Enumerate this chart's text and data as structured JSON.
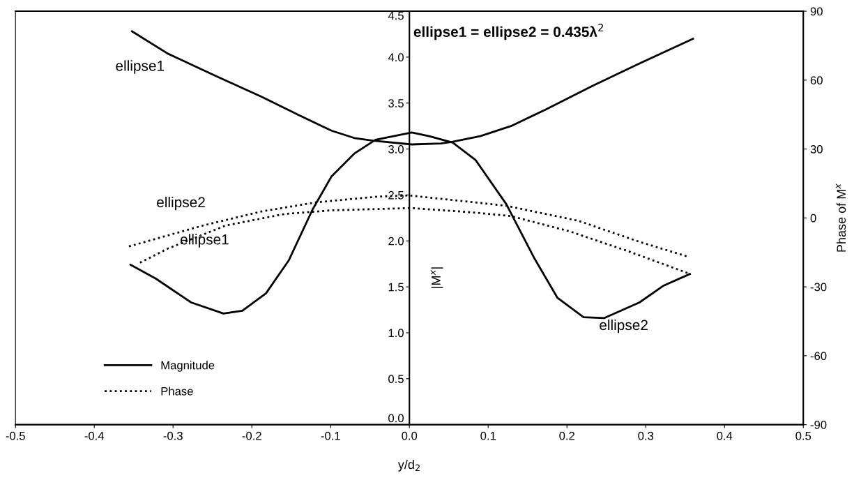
{
  "chart_data": {
    "type": "line",
    "xlabel": "y/d$_{2}$",
    "ylabel": "|M$^{x}$|",
    "y2label": "Phase of M$^{x}$",
    "xlim": [
      -0.5,
      0.5
    ],
    "xticks": [
      -0.5,
      -0.4,
      -0.3,
      -0.2,
      -0.1,
      {
        "value": 0,
        "label": "0.0"
      },
      0.1,
      0.2,
      0.3,
      0.4,
      0.5
    ],
    "ylim": [
      0,
      4.5
    ],
    "yticks": [
      {
        "value": 0,
        "label": "0.0"
      },
      0.5,
      {
        "value": 1,
        "label": "1.0"
      },
      1.5,
      {
        "value": 2,
        "label": "2.0"
      },
      2.5,
      {
        "value": 3,
        "label": "3.0"
      },
      3.5,
      {
        "value": 4,
        "label": "4.0"
      },
      4.5
    ],
    "y2lim": [
      -90,
      90
    ],
    "y2ticks": [
      -90,
      -60,
      -30,
      0,
      30,
      60,
      90
    ],
    "grid": false,
    "legend": "bottom left",
    "series": [
      {
        "name": "Magnitude",
        "color": "#000000",
        "line_style": "solid",
        "x": [
          -0.352,
          -0.307,
          -0.247,
          -0.188,
          -0.138,
          -0.099,
          -0.07,
          -0.046,
          0.003,
          0.04,
          0.055,
          0.09,
          0.129,
          0.173,
          0.233,
          0.292,
          0.36
        ],
        "values": [
          4.28,
          4.04,
          3.8,
          3.57,
          3.36,
          3.2,
          3.12,
          3.09,
          3.05,
          3.06,
          3.08,
          3.14,
          3.25,
          3.43,
          3.69,
          3.93,
          4.2
        ]
      },
      {
        "color": "#000000",
        "line_style": "solid",
        "x": [
          -0.354,
          -0.322,
          -0.277,
          -0.236,
          -0.212,
          -0.182,
          -0.153,
          -0.123,
          -0.099,
          -0.07,
          -0.043,
          0.003,
          0.025,
          0.055,
          0.084,
          0.123,
          0.158,
          0.188,
          0.221,
          0.247,
          0.292,
          0.322,
          0.356
        ],
        "values": [
          1.74,
          1.59,
          1.33,
          1.21,
          1.24,
          1.43,
          1.79,
          2.34,
          2.7,
          2.95,
          3.1,
          3.18,
          3.14,
          3.07,
          2.88,
          2.4,
          1.82,
          1.38,
          1.17,
          1.16,
          1.33,
          1.51,
          1.64
        ]
      },
      {
        "name": "Phase",
        "color": "#000000",
        "line_style": "dotted",
        "axis": "y2",
        "x": [
          -0.342,
          -0.307,
          -0.233,
          -0.159,
          -0.099,
          0.003,
          0.084,
          0.129,
          0.203,
          0.277,
          0.354
        ],
        "values": [
          -19.5,
          -13.4,
          -3.3,
          1.7,
          3.3,
          4.3,
          2.3,
          0.8,
          -5.8,
          -14.4,
          -24.1
        ]
      },
      {
        "color": "#000000",
        "line_style": "dotted",
        "axis": "y2",
        "x": [
          -0.356,
          -0.262,
          -0.188,
          -0.118,
          -0.04,
          0.0,
          0.123,
          0.215,
          0.292,
          0.354
        ],
        "values": [
          -12.4,
          -3.3,
          2.8,
          6.8,
          9.3,
          9.8,
          5.3,
          -1.3,
          -10.4,
          -16.9
        ]
      }
    ],
    "annotations": [
      "ellipse1 = ellipse2 = 0.435λ$^{2}$",
      "ellipse1",
      "ellipse2",
      "ellipse1",
      "ellipse2"
    ]
  }
}
